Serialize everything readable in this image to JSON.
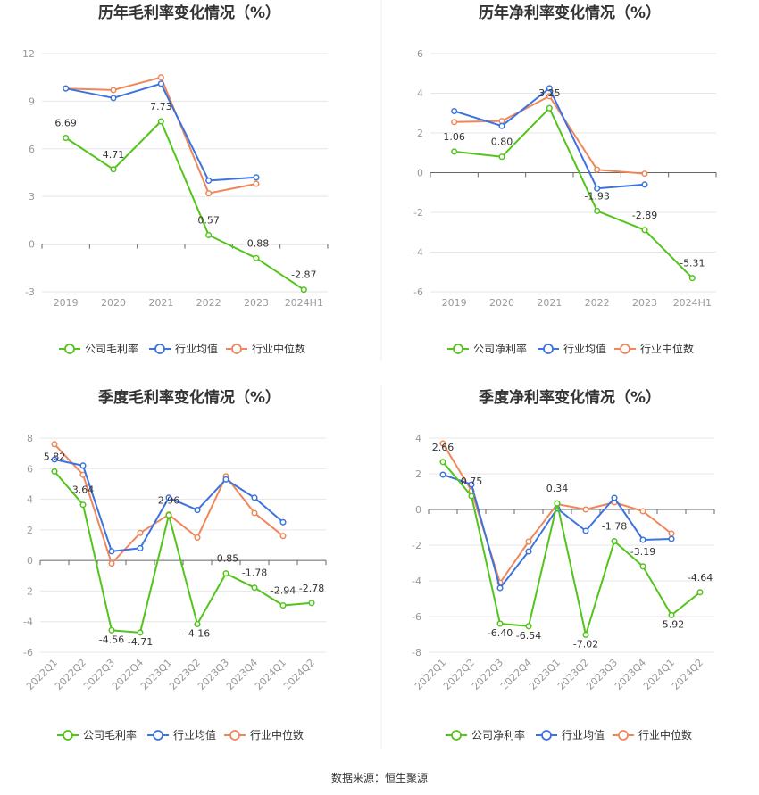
{
  "source_label": "数据来源：恒生聚源",
  "colors": {
    "company": "#52c41a",
    "industry_avg": "#3b73e0",
    "industry_median": "#f0875a",
    "grid": "#e6e6e6",
    "axis": "#666666"
  },
  "chart_data": [
    {
      "type": "line",
      "title": "历年毛利率变化情况（%）",
      "categories": [
        "2019",
        "2020",
        "2021",
        "2022",
        "2023",
        "2024H1"
      ],
      "ylim": [
        -3,
        12
      ],
      "yticks": [
        -3,
        0,
        3,
        6,
        9,
        12
      ],
      "grid": true,
      "legend": "bottom",
      "series": [
        {
          "name": "公司毛利率",
          "values": [
            6.69,
            4.71,
            7.73,
            0.57,
            -0.88,
            -2.87
          ],
          "labels": true
        },
        {
          "name": "行业均值",
          "values": [
            9.8,
            9.2,
            10.1,
            4.0,
            4.2,
            null
          ]
        },
        {
          "name": "行业中位数",
          "values": [
            9.8,
            9.7,
            10.5,
            3.2,
            3.8,
            null
          ]
        }
      ]
    },
    {
      "type": "line",
      "title": "历年净利率变化情况（%）",
      "categories": [
        "2019",
        "2020",
        "2021",
        "2022",
        "2023",
        "2024H1"
      ],
      "ylim": [
        -6,
        6
      ],
      "yticks": [
        -6,
        -4,
        -2,
        0,
        2,
        4,
        6
      ],
      "grid": true,
      "legend": "bottom",
      "series": [
        {
          "name": "公司净利率",
          "values": [
            1.06,
            0.8,
            3.25,
            -1.93,
            -2.89,
            -5.31
          ],
          "labels": true
        },
        {
          "name": "行业均值",
          "values": [
            3.1,
            2.35,
            4.25,
            -0.8,
            -0.6,
            null
          ]
        },
        {
          "name": "行业中位数",
          "values": [
            2.55,
            2.6,
            3.85,
            0.15,
            -0.05,
            null
          ]
        }
      ]
    },
    {
      "type": "line",
      "title": "季度毛利率变化情况（%）",
      "categories": [
        "2022Q1",
        "2022Q2",
        "2022Q3",
        "2022Q4",
        "2023Q1",
        "2023Q2",
        "2023Q3",
        "2023Q4",
        "2024Q1",
        "2024Q2"
      ],
      "ylim": [
        -6,
        8
      ],
      "yticks": [
        -6,
        -4,
        -2,
        0,
        2,
        4,
        6,
        8
      ],
      "grid": true,
      "legend": "bottom",
      "series": [
        {
          "name": "公司毛利率",
          "values": [
            5.82,
            3.64,
            -4.56,
            -4.71,
            2.96,
            -4.16,
            -0.85,
            -1.78,
            -2.94,
            -2.78
          ],
          "labels": true
        },
        {
          "name": "行业均值",
          "values": [
            6.6,
            6.2,
            0.6,
            0.8,
            4.1,
            3.3,
            5.3,
            4.1,
            2.5,
            null
          ]
        },
        {
          "name": "行业中位数",
          "values": [
            7.6,
            5.6,
            -0.2,
            1.8,
            3.0,
            1.5,
            5.5,
            3.1,
            1.6,
            null
          ]
        }
      ]
    },
    {
      "type": "line",
      "title": "季度净利率变化情况（%）",
      "categories": [
        "2022Q1",
        "2022Q2",
        "2022Q3",
        "2022Q4",
        "2023Q1",
        "2023Q2",
        "2023Q3",
        "2023Q4",
        "2024Q1",
        "2024Q2"
      ],
      "ylim": [
        -8,
        4
      ],
      "yticks": [
        -8,
        -6,
        -4,
        -2,
        0,
        2,
        4
      ],
      "grid": true,
      "legend": "bottom",
      "series": [
        {
          "name": "公司净利率",
          "values": [
            2.66,
            0.75,
            -6.4,
            -6.54,
            0.34,
            -7.02,
            -1.78,
            -3.19,
            -5.92,
            -4.64
          ],
          "labels": true
        },
        {
          "name": "行业均值",
          "values": [
            1.95,
            1.4,
            -4.4,
            -2.35,
            0.05,
            -1.2,
            0.65,
            -1.7,
            -1.65,
            null
          ]
        },
        {
          "name": "行业中位数",
          "values": [
            3.7,
            1.05,
            -4.1,
            -1.8,
            0.3,
            0.0,
            0.4,
            -0.1,
            -1.35,
            null
          ]
        }
      ]
    }
  ]
}
